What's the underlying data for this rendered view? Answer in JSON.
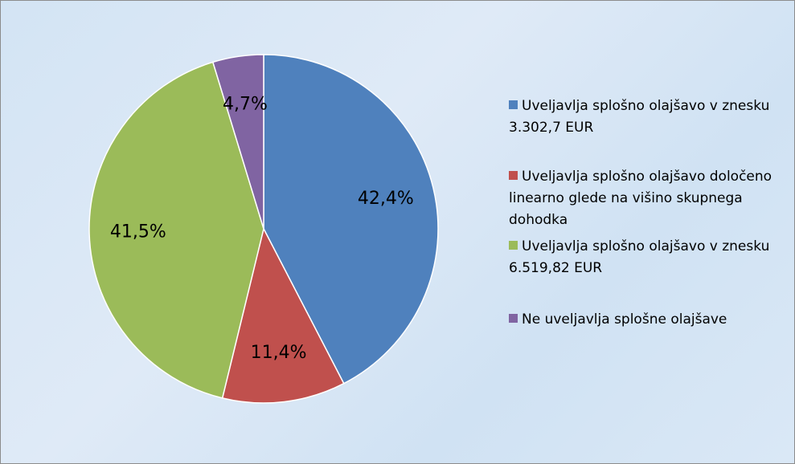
{
  "chart_data": {
    "type": "pie",
    "categories": [
      "Uveljavlja splošno olajšavo v znesku 3.302,7 EUR",
      "Uveljavlja splošno olajšavo določeno linearno glede na višino skupnega dohodka",
      "Uveljavlja splošno olajšavo v znesku 6.519,82 EUR",
      "Ne uveljavlja splošne olajšave"
    ],
    "values": [
      42.4,
      11.4,
      41.5,
      4.7
    ],
    "value_labels": [
      "42,4%",
      "11,4%",
      "41,5%",
      "4,7%"
    ],
    "colors": [
      "#4f81bd",
      "#c0504d",
      "#9bbb59",
      "#8064a2"
    ],
    "legend": "right"
  }
}
